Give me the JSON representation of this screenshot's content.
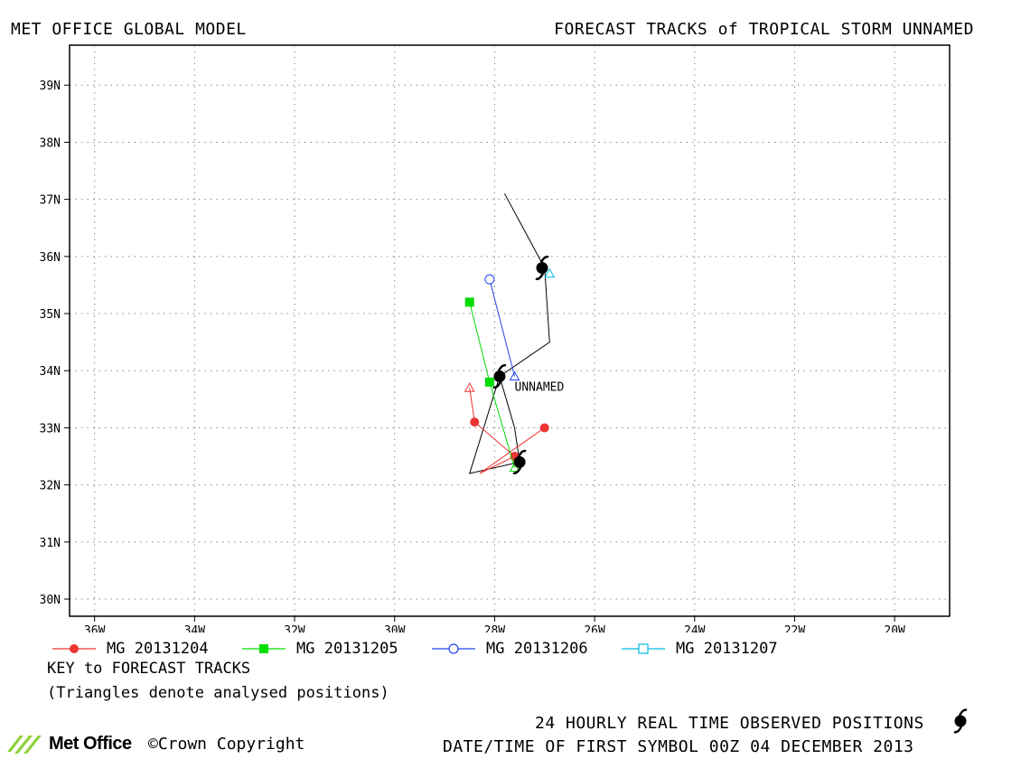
{
  "header": {
    "left": "MET OFFICE GLOBAL MODEL",
    "right": "FORECAST TRACKS of TROPICAL STORM UNNAMED"
  },
  "map": {
    "lon_range": [
      -36.5,
      -18.9
    ],
    "lat_range": [
      29.7,
      39.7
    ],
    "lon_ticks": [
      {
        "value": -36,
        "label": "36W"
      },
      {
        "value": -34,
        "label": "34W"
      },
      {
        "value": -32,
        "label": "32W"
      },
      {
        "value": -30,
        "label": "30W"
      },
      {
        "value": -28,
        "label": "28W"
      },
      {
        "value": -26,
        "label": "26W"
      },
      {
        "value": -24,
        "label": "24W"
      },
      {
        "value": -22,
        "label": "22W"
      },
      {
        "value": -20,
        "label": "20W"
      }
    ],
    "lat_ticks": [
      {
        "value": 30,
        "label": "30N"
      },
      {
        "value": 31,
        "label": "31N"
      },
      {
        "value": 32,
        "label": "32N"
      },
      {
        "value": 33,
        "label": "33N"
      },
      {
        "value": 34,
        "label": "34N"
      },
      {
        "value": 35,
        "label": "35N"
      },
      {
        "value": 36,
        "label": "36N"
      },
      {
        "value": 37,
        "label": "37N"
      },
      {
        "value": 38,
        "label": "38N"
      },
      {
        "value": 39,
        "label": "39N"
      }
    ],
    "grid": "dotted",
    "storm_label": "UNNAMED",
    "storm_label_pos": [
      -27.6,
      33.65
    ],
    "observed_track": [
      [
        -27.8,
        37.1
      ],
      [
        -27.0,
        35.8
      ],
      [
        -26.9,
        34.5
      ],
      [
        -27.9,
        33.9
      ],
      [
        -27.6,
        33.0
      ],
      [
        -27.5,
        32.4
      ],
      [
        -28.5,
        32.2
      ],
      [
        -27.9,
        33.9
      ]
    ],
    "observed_positions": [
      [
        -27.5,
        32.4
      ],
      [
        -27.9,
        33.9
      ],
      [
        -27.05,
        35.8
      ]
    ],
    "forecasts": [
      {
        "name": "MG 20131204",
        "color": "#ee3333",
        "symbol": "circle-filled",
        "analysed": [
          -28.5,
          33.7
        ],
        "track": [
          [
            -28.5,
            33.7
          ],
          [
            -28.4,
            33.1
          ],
          [
            -27.6,
            32.5
          ],
          [
            -28.3,
            32.2
          ],
          [
            -27.0,
            33.0
          ]
        ],
        "markers": [
          [
            -28.4,
            33.1
          ],
          [
            -27.6,
            32.5
          ],
          [
            -27.0,
            33.0
          ]
        ]
      },
      {
        "name": "MG 20131205",
        "color": "#00dd00",
        "symbol": "square-filled",
        "analysed": [
          -27.6,
          32.3
        ],
        "track": [
          [
            -27.6,
            32.3
          ],
          [
            -28.1,
            33.8
          ],
          [
            -28.5,
            35.2
          ]
        ],
        "markers": [
          [
            -28.1,
            33.8
          ],
          [
            -28.5,
            35.2
          ]
        ]
      },
      {
        "name": "MG 20131206",
        "color": "#2244ee",
        "symbol": "circle-open",
        "analysed": [
          -27.6,
          33.9
        ],
        "track": [
          [
            -27.6,
            33.9
          ],
          [
            -28.1,
            35.6
          ]
        ],
        "markers": [
          [
            -28.1,
            35.6
          ]
        ]
      },
      {
        "name": "MG 20131207",
        "color": "#00bbdd",
        "symbol": "square-open",
        "analysed": [
          -26.9,
          35.7
        ],
        "track": [
          [
            -26.9,
            35.7
          ]
        ],
        "markers": []
      }
    ]
  },
  "legend": [
    {
      "label": "MG 20131204",
      "color": "#ee3333",
      "symbol": "circle-filled"
    },
    {
      "label": "MG 20131205",
      "color": "#00dd00",
      "symbol": "square-filled"
    },
    {
      "label": "MG 20131206",
      "color": "#2244ee",
      "symbol": "circle-open"
    },
    {
      "label": "MG 20131207",
      "color": "#00bbdd",
      "symbol": "square-open"
    }
  ],
  "key": {
    "line1": "KEY to FORECAST TRACKS",
    "line2": "(Triangles denote analysed positions)"
  },
  "footer": {
    "observed": "24 HOURLY REAL TIME OBSERVED POSITIONS",
    "datetime": "DATE/TIME OF FIRST SYMBOL 00Z 04 DECEMBER 2013",
    "logo": "Met Office",
    "copyright": "©Crown Copyright"
  },
  "icons": {
    "storm": "tropical-storm-icon",
    "logo": "met-office-logo-icon"
  }
}
